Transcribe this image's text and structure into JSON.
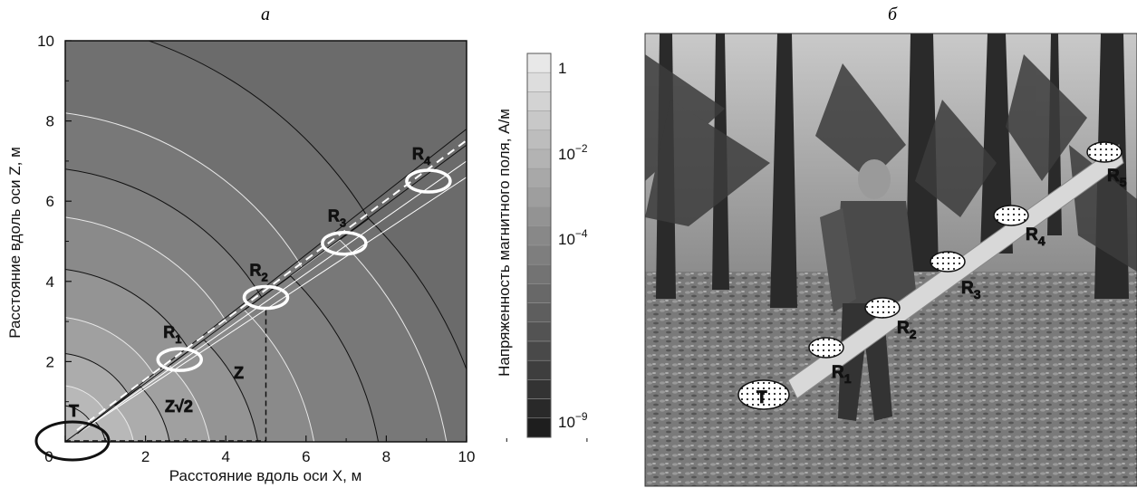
{
  "panel_a": {
    "letter": "а",
    "xlabel": "Расстояние вдоль оси X, м",
    "ylabel": "Расстояние вдоль оси Z, м",
    "xticks": [
      "0",
      "2",
      "4",
      "6",
      "8",
      "10"
    ],
    "yticks": [
      "10",
      "8",
      "6",
      "4",
      "2"
    ],
    "receivers": [
      {
        "label": "R",
        "sub": "1",
        "x": 2.85,
        "z": 2.05
      },
      {
        "label": "R",
        "sub": "2",
        "x": 5.0,
        "z": 3.6
      },
      {
        "label": "R",
        "sub": "3",
        "x": 6.95,
        "z": 4.95
      },
      {
        "label": "R",
        "sub": "4",
        "x": 9.05,
        "z": 6.5
      }
    ],
    "transmitter": {
      "label": "T",
      "x": 0.3,
      "z": 0.6
    },
    "annot_z": "Z",
    "annot_z2": "Z√2",
    "dashed_point": {
      "x": 5.0,
      "z": 3.6
    },
    "colorbar": {
      "label": "Напряженность магнитного поля, А/м",
      "ticks": [
        {
          "text": "1",
          "exp": ""
        },
        {
          "text": "10",
          "exp": "−2"
        },
        {
          "text": "10",
          "exp": "−4"
        },
        {
          "text": "10",
          "exp": "−9"
        }
      ]
    }
  },
  "panel_b": {
    "letter": "б",
    "markers": [
      {
        "label": "T",
        "sub": ""
      },
      {
        "label": "R",
        "sub": "1"
      },
      {
        "label": "R",
        "sub": "2"
      },
      {
        "label": "R",
        "sub": "3"
      },
      {
        "label": "R",
        "sub": "4"
      },
      {
        "label": "R",
        "sub": "5"
      }
    ]
  }
}
